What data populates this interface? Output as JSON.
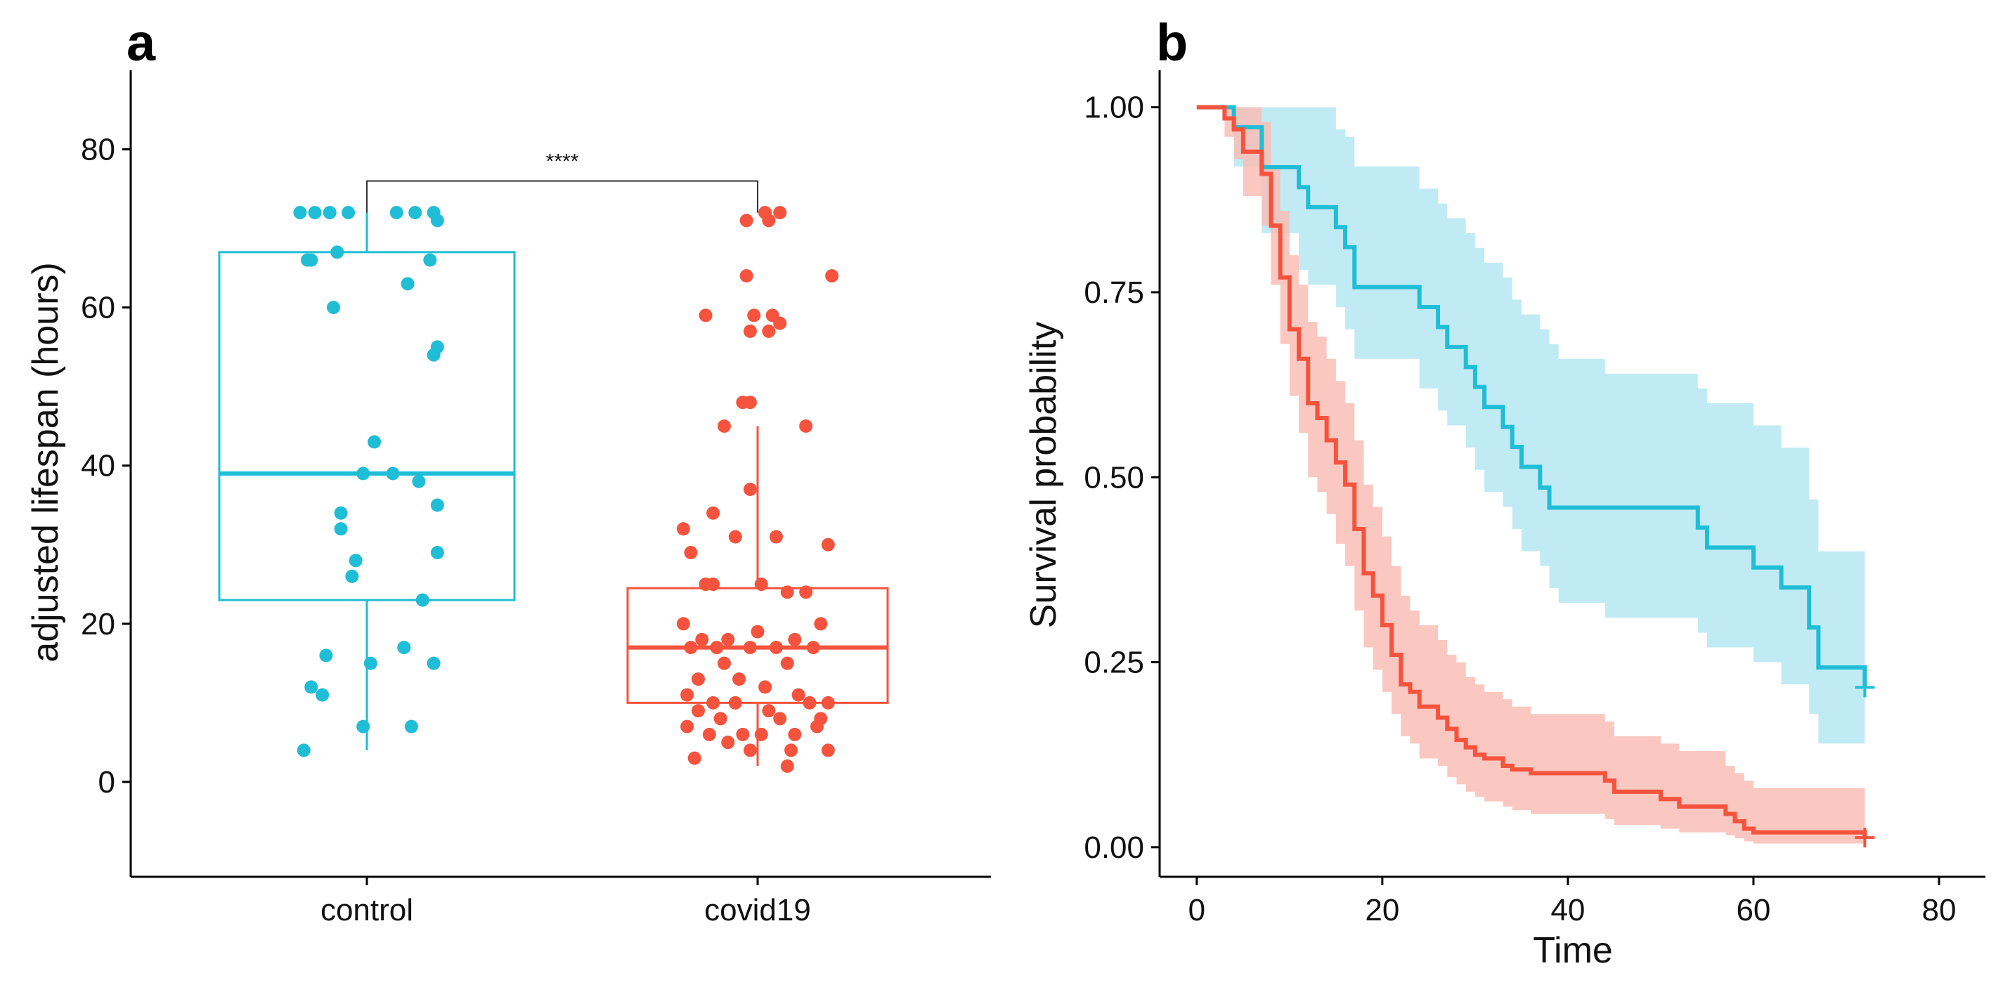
{
  "colors": {
    "control": "#1fbdd6",
    "covid19": "#f5533d",
    "control_band": "#b6e8f2",
    "covid19_band": "#f9beb5",
    "axis": "#000000"
  },
  "chart_data": [
    {
      "panel_label": "a",
      "type": "box+jitter",
      "categories": [
        "control",
        "covid19"
      ],
      "ylabel": "adjusted lifespan (hours)",
      "xlabel": "",
      "ylim": [
        -12,
        90
      ],
      "yticks": [
        "0",
        "20",
        "40",
        "60",
        "80"
      ],
      "ytick_values": [
        0,
        20,
        40,
        60,
        80
      ],
      "significance": {
        "label": "****",
        "y": 76
      },
      "boxes": [
        {
          "name": "control",
          "q1": 23,
          "median": 39,
          "q3": 67,
          "whisker_low": 4,
          "whisker_high": 72
        },
        {
          "name": "covid19",
          "q1": 10,
          "median": 17,
          "q3": 24.5,
          "whisker_low": 2,
          "whisker_high": 45
        }
      ],
      "series": [
        {
          "name": "control",
          "points": [
            [
              -0.18,
              72
            ],
            [
              -0.14,
              72
            ],
            [
              -0.1,
              72
            ],
            [
              -0.05,
              72
            ],
            [
              0.08,
              72
            ],
            [
              0.13,
              72
            ],
            [
              0.18,
              72
            ],
            [
              0.19,
              71
            ],
            [
              -0.16,
              66
            ],
            [
              -0.08,
              67
            ],
            [
              -0.15,
              66
            ],
            [
              0.17,
              66
            ],
            [
              0.11,
              63
            ],
            [
              -0.09,
              60
            ],
            [
              0.19,
              55
            ],
            [
              0.18,
              54
            ],
            [
              0.02,
              43
            ],
            [
              -0.01,
              39
            ],
            [
              0.07,
              39
            ],
            [
              0.14,
              38
            ],
            [
              -0.07,
              34
            ],
            [
              -0.07,
              32
            ],
            [
              0.19,
              35
            ],
            [
              0.19,
              29
            ],
            [
              -0.03,
              28
            ],
            [
              -0.04,
              26
            ],
            [
              0.15,
              23
            ],
            [
              -0.11,
              16
            ],
            [
              0.01,
              15
            ],
            [
              0.1,
              17
            ],
            [
              0.18,
              15
            ],
            [
              -0.15,
              12
            ],
            [
              -0.12,
              11
            ],
            [
              -0.01,
              7
            ],
            [
              0.12,
              7
            ],
            [
              -0.17,
              4
            ]
          ]
        },
        {
          "name": "covid19",
          "points": [
            [
              -0.03,
              71
            ],
            [
              0.03,
              71
            ],
            [
              0.06,
              72
            ],
            [
              0.02,
              72
            ],
            [
              -0.03,
              64
            ],
            [
              0.2,
              64
            ],
            [
              -0.14,
              59
            ],
            [
              -0.01,
              59
            ],
            [
              0.04,
              59
            ],
            [
              0.06,
              58
            ],
            [
              -0.02,
              57
            ],
            [
              0.03,
              57
            ],
            [
              -0.04,
              48
            ],
            [
              -0.02,
              48
            ],
            [
              -0.09,
              45
            ],
            [
              0.13,
              45
            ],
            [
              -0.02,
              37
            ],
            [
              -0.2,
              32
            ],
            [
              -0.12,
              34
            ],
            [
              -0.06,
              31
            ],
            [
              0.05,
              31
            ],
            [
              0.19,
              30
            ],
            [
              -0.18,
              29
            ],
            [
              -0.14,
              25
            ],
            [
              -0.12,
              25
            ],
            [
              0.01,
              25
            ],
            [
              0.08,
              24
            ],
            [
              0.13,
              24
            ],
            [
              -0.2,
              20
            ],
            [
              -0.15,
              18
            ],
            [
              -0.08,
              18
            ],
            [
              0.0,
              19
            ],
            [
              0.1,
              18
            ],
            [
              0.17,
              20
            ],
            [
              -0.18,
              17
            ],
            [
              -0.11,
              17
            ],
            [
              -0.02,
              17
            ],
            [
              0.05,
              17
            ],
            [
              0.15,
              17
            ],
            [
              -0.09,
              15
            ],
            [
              0.08,
              15
            ],
            [
              -0.16,
              13
            ],
            [
              -0.05,
              13
            ],
            [
              0.02,
              12
            ],
            [
              0.11,
              11
            ],
            [
              -0.19,
              11
            ],
            [
              -0.12,
              10
            ],
            [
              0.14,
              10
            ],
            [
              0.19,
              10
            ],
            [
              -0.06,
              10
            ],
            [
              0.03,
              9
            ],
            [
              -0.16,
              9
            ],
            [
              -0.1,
              8
            ],
            [
              0.06,
              8
            ],
            [
              0.17,
              8
            ],
            [
              -0.19,
              7
            ],
            [
              -0.13,
              6
            ],
            [
              -0.04,
              6
            ],
            [
              0.01,
              6
            ],
            [
              0.1,
              6
            ],
            [
              0.16,
              7
            ],
            [
              -0.08,
              5
            ],
            [
              -0.02,
              4
            ],
            [
              0.09,
              4
            ],
            [
              0.19,
              4
            ],
            [
              -0.17,
              3
            ],
            [
              0.08,
              2
            ]
          ]
        }
      ]
    },
    {
      "panel_label": "b",
      "type": "line",
      "subtype": "kaplan-meier",
      "xlabel": "Time",
      "ylabel": "Survival probability",
      "xlim": [
        -4,
        85
      ],
      "ylim": [
        -0.04,
        1.05
      ],
      "xticks": [
        "0",
        "20",
        "40",
        "60",
        "80"
      ],
      "xtick_values": [
        0,
        20,
        40,
        60,
        80
      ],
      "yticks": [
        "0.00",
        "0.25",
        "0.50",
        "0.75",
        "1.00"
      ],
      "ytick_values": [
        0,
        0.25,
        0.5,
        0.75,
        1.0
      ],
      "series": [
        {
          "name": "control",
          "censored_at": [
            72,
            0.216
          ],
          "x": [
            0,
            4,
            7,
            11,
            12,
            15,
            16,
            17,
            24,
            26,
            27,
            29,
            30,
            31,
            33,
            34,
            35,
            37,
            38,
            39,
            44,
            54,
            55,
            60,
            63,
            66,
            67,
            72
          ],
          "y": [
            1.0,
            0.973,
            0.919,
            0.892,
            0.865,
            0.838,
            0.811,
            0.757,
            0.73,
            0.703,
            0.676,
            0.649,
            0.622,
            0.595,
            0.568,
            0.541,
            0.514,
            0.486,
            0.459,
            0.459,
            0.459,
            0.432,
            0.405,
            0.378,
            0.351,
            0.297,
            0.243,
            0.216
          ],
          "lower": [
            1.0,
            0.92,
            0.83,
            0.78,
            0.76,
            0.73,
            0.7,
            0.66,
            0.62,
            0.59,
            0.57,
            0.54,
            0.51,
            0.48,
            0.46,
            0.43,
            0.4,
            0.38,
            0.35,
            0.33,
            0.31,
            0.29,
            0.27,
            0.25,
            0.22,
            0.18,
            0.14,
            0.12
          ],
          "upper": [
            1.0,
            1.0,
            1.0,
            1.0,
            1.0,
            0.97,
            0.96,
            0.92,
            0.89,
            0.87,
            0.85,
            0.83,
            0.81,
            0.79,
            0.77,
            0.74,
            0.72,
            0.7,
            0.68,
            0.66,
            0.64,
            0.62,
            0.6,
            0.57,
            0.54,
            0.47,
            0.4,
            0.37
          ]
        },
        {
          "name": "covid19",
          "censored_at": [
            72,
            0.013
          ],
          "x": [
            0,
            3,
            4,
            5,
            7,
            8,
            9,
            10,
            11,
            12,
            13,
            14,
            15,
            16,
            17,
            18,
            19,
            20,
            21,
            22,
            23,
            24,
            26,
            27,
            28,
            29,
            30,
            31,
            33,
            34,
            36,
            44,
            45,
            50,
            52,
            57,
            58,
            59,
            60,
            72
          ],
          "y": [
            1.0,
            0.985,
            0.97,
            0.94,
            0.91,
            0.84,
            0.77,
            0.7,
            0.66,
            0.6,
            0.58,
            0.55,
            0.52,
            0.49,
            0.43,
            0.37,
            0.34,
            0.3,
            0.26,
            0.22,
            0.21,
            0.19,
            0.175,
            0.16,
            0.145,
            0.135,
            0.125,
            0.12,
            0.11,
            0.105,
            0.1,
            0.09,
            0.075,
            0.065,
            0.055,
            0.045,
            0.035,
            0.025,
            0.02,
            0.013
          ],
          "lower": [
            1.0,
            0.96,
            0.93,
            0.88,
            0.84,
            0.76,
            0.68,
            0.61,
            0.56,
            0.5,
            0.48,
            0.45,
            0.41,
            0.38,
            0.32,
            0.27,
            0.24,
            0.21,
            0.18,
            0.15,
            0.14,
            0.12,
            0.11,
            0.095,
            0.085,
            0.075,
            0.068,
            0.062,
            0.055,
            0.05,
            0.045,
            0.038,
            0.03,
            0.025,
            0.02,
            0.016,
            0.012,
            0.008,
            0.005,
            0.002
          ],
          "upper": [
            1.0,
            1.0,
            1.0,
            1.0,
            0.98,
            0.92,
            0.86,
            0.8,
            0.76,
            0.71,
            0.69,
            0.66,
            0.63,
            0.6,
            0.55,
            0.49,
            0.46,
            0.42,
            0.38,
            0.34,
            0.32,
            0.3,
            0.28,
            0.26,
            0.25,
            0.23,
            0.22,
            0.21,
            0.2,
            0.19,
            0.18,
            0.17,
            0.15,
            0.14,
            0.13,
            0.11,
            0.1,
            0.09,
            0.08,
            0.06
          ]
        }
      ]
    }
  ]
}
